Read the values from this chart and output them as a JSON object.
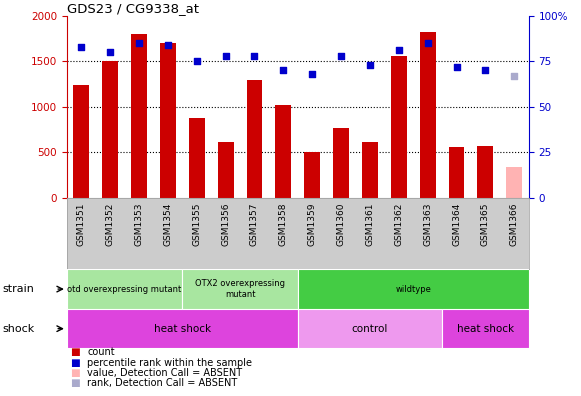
{
  "title": "GDS23 / CG9338_at",
  "categories": [
    "GSM1351",
    "GSM1352",
    "GSM1353",
    "GSM1354",
    "GSM1355",
    "GSM1356",
    "GSM1357",
    "GSM1358",
    "GSM1359",
    "GSM1360",
    "GSM1361",
    "GSM1362",
    "GSM1363",
    "GSM1364",
    "GSM1365",
    "GSM1366"
  ],
  "bar_values": [
    1240,
    1500,
    1800,
    1700,
    880,
    620,
    1300,
    1020,
    510,
    770,
    620,
    1560,
    1820,
    560,
    570,
    null
  ],
  "bar_absent_value": 340,
  "bar_absent_index": 15,
  "bar_color": "#cc0000",
  "bar_absent_color": "#ffb3b3",
  "dot_values": [
    83,
    80,
    85,
    84,
    75,
    78,
    78,
    70,
    68,
    78,
    73,
    81,
    85,
    72,
    70,
    null
  ],
  "dot_absent_value": 67,
  "dot_absent_index": 15,
  "dot_color": "#0000cc",
  "dot_absent_color": "#aaaacc",
  "ylim_left": [
    0,
    2000
  ],
  "ylim_right": [
    0,
    100
  ],
  "yticks_left": [
    0,
    500,
    1000,
    1500,
    2000
  ],
  "yticks_right": [
    0,
    25,
    50,
    75,
    100
  ],
  "ytick_labels_right": [
    "0",
    "25",
    "50",
    "75",
    "100%"
  ],
  "left_axis_color": "#cc0000",
  "right_axis_color": "#0000cc",
  "strain_groups": [
    {
      "label": "otd overexpressing mutant",
      "start": 0,
      "end": 4,
      "color": "#a8e6a0"
    },
    {
      "label": "OTX2 overexpressing\nmutant",
      "start": 4,
      "end": 8,
      "color": "#a8e6a0"
    },
    {
      "label": "wildtype",
      "start": 8,
      "end": 16,
      "color": "#44cc44"
    }
  ],
  "shock_groups": [
    {
      "label": "heat shock",
      "start": 0,
      "end": 8,
      "color": "#dd44dd"
    },
    {
      "label": "control",
      "start": 8,
      "end": 13,
      "color": "#ee99ee"
    },
    {
      "label": "heat shock",
      "start": 13,
      "end": 16,
      "color": "#dd44dd"
    }
  ],
  "legend_items": [
    {
      "label": "count",
      "color": "#cc0000"
    },
    {
      "label": "percentile rank within the sample",
      "color": "#0000cc"
    },
    {
      "label": "value, Detection Call = ABSENT",
      "color": "#ffb3b3"
    },
    {
      "label": "rank, Detection Call = ABSENT",
      "color": "#aaaacc"
    }
  ],
  "bar_width": 0.55,
  "bg_color": "#ffffff",
  "tick_label_area_color": "#cccccc"
}
